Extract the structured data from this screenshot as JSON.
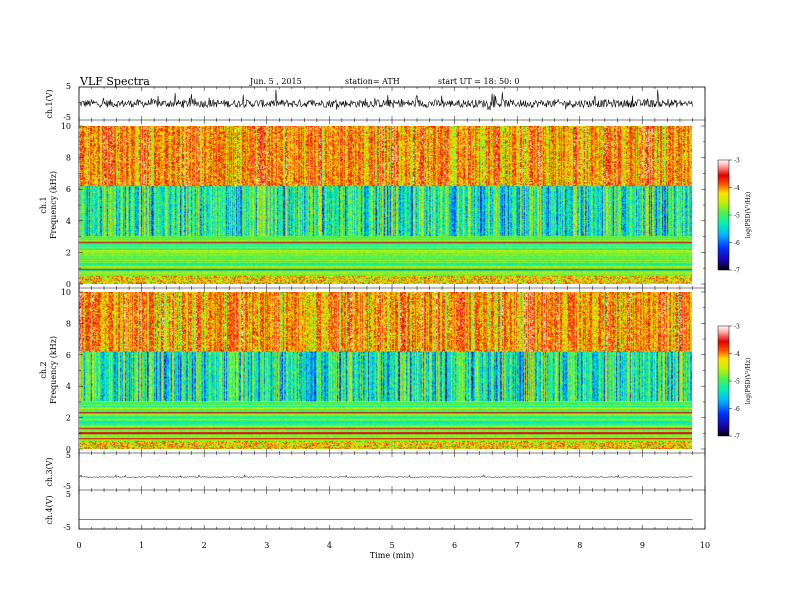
{
  "header": {
    "title": "VLF  Spectra",
    "date": "Jun. 5  , 2015",
    "station": "station= ATH",
    "start": "start  UT  =    18: 50: 0"
  },
  "chart_data": [
    {
      "id": "ch1-waveform",
      "type": "line",
      "ylabel": "ch.1(V)",
      "ylim": [
        -5,
        5
      ],
      "y_ticks": [
        "5",
        "-5"
      ],
      "x_range_min": [
        0,
        9.8
      ],
      "trace_level": 0,
      "trace_amplitude_v": 1.2,
      "color": "#000000"
    },
    {
      "id": "ch1-spectrogram",
      "type": "heatmap",
      "ylabel": "ch.1\nFrequency  (kHz)",
      "ylim": [
        0,
        10
      ],
      "y_ticks": [
        "0",
        "2",
        "4",
        "6",
        "8",
        "10"
      ],
      "x_range_min": [
        0,
        9.8
      ],
      "colorbar": {
        "label": "log(PSD(V²/Hz)",
        "range": [
          -7,
          -3
        ],
        "ticks": [
          "-3",
          "-4",
          "-5",
          "-6",
          "-7"
        ]
      }
    },
    {
      "id": "ch2-spectrogram",
      "type": "heatmap",
      "ylabel": "ch.2\nFrequency  (kHz)",
      "ylim": [
        0,
        10
      ],
      "y_ticks": [
        "0",
        "2",
        "4",
        "6",
        "8",
        "10"
      ],
      "x_range_min": [
        0,
        9.8
      ],
      "colorbar": {
        "label": "log(PSD(V²/Hz)",
        "range": [
          -7,
          -3
        ],
        "ticks": [
          "-3",
          "-4",
          "-5",
          "-6",
          "-7"
        ]
      }
    },
    {
      "id": "ch3-waveform",
      "type": "line",
      "ylabel": "ch.3(V)",
      "ylim": [
        -5,
        5
      ],
      "y_ticks": [
        "5",
        "-5"
      ],
      "x_range_min": [
        0,
        9.8
      ],
      "trace_level": -1.5,
      "trace_amplitude_v": 0.15,
      "color": "#000000"
    },
    {
      "id": "ch4-waveform",
      "type": "line",
      "ylabel": "ch.4(V)",
      "ylim": [
        -5,
        5
      ],
      "y_ticks": [
        "5",
        "-5"
      ],
      "x_range_min": [
        0,
        9.8
      ],
      "trace_level": -2.5,
      "trace_amplitude_v": 0.0,
      "color": "#000000"
    }
  ],
  "x_axis": {
    "label": "Time  (min)",
    "range": [
      0,
      10
    ],
    "ticks": [
      "0",
      "1",
      "2",
      "3",
      "4",
      "5",
      "6",
      "7",
      "8",
      "9",
      "10"
    ]
  },
  "colors": {
    "colormap": [
      "#000000",
      "#1a00a0",
      "#0030ff",
      "#00b4ff",
      "#00f0b4",
      "#50f050",
      "#c8f000",
      "#ffe000",
      "#ff5000",
      "#e00000",
      "#ffa0a0",
      "#ffffff"
    ]
  }
}
